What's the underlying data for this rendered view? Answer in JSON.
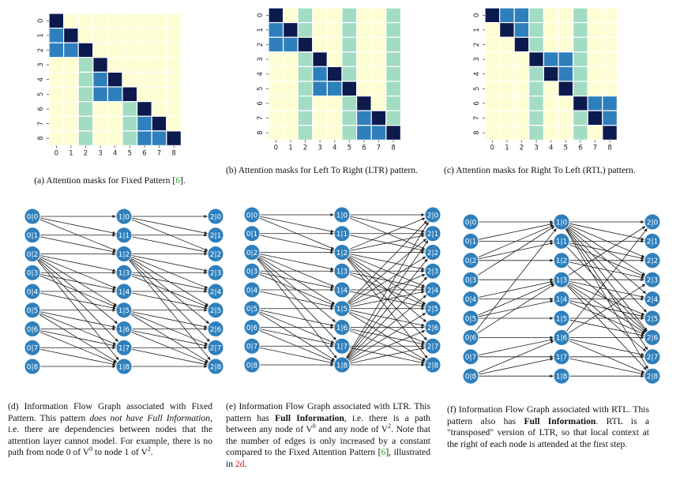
{
  "colors": {
    "masked": "#fefed4",
    "attend_light": "#a2dcc3",
    "attend_mid": "#2e7fbc",
    "self": "#0d1a4e",
    "node_fill": "#2e7fbc",
    "node_stroke": "#ffffff",
    "edge": "#1a1a1a",
    "cite_green": "#2a9d2a",
    "ref_red": "#d11111"
  },
  "matrices": {
    "labels": [
      "0",
      "1",
      "2",
      "3",
      "4",
      "5",
      "6",
      "7",
      "8"
    ],
    "fixed": [
      [
        3,
        0,
        0,
        0,
        0,
        0,
        0,
        0,
        0
      ],
      [
        2,
        3,
        0,
        0,
        0,
        0,
        0,
        0,
        0
      ],
      [
        2,
        2,
        3,
        0,
        0,
        0,
        0,
        0,
        0
      ],
      [
        0,
        0,
        1,
        3,
        0,
        0,
        0,
        0,
        0
      ],
      [
        0,
        0,
        1,
        2,
        3,
        0,
        0,
        0,
        0
      ],
      [
        0,
        0,
        1,
        2,
        2,
        3,
        0,
        0,
        0
      ],
      [
        0,
        0,
        1,
        0,
        0,
        1,
        3,
        0,
        0
      ],
      [
        0,
        0,
        1,
        0,
        0,
        1,
        2,
        3,
        0
      ],
      [
        0,
        0,
        1,
        0,
        0,
        1,
        2,
        2,
        3
      ]
    ],
    "ltr": [
      [
        3,
        0,
        1,
        0,
        0,
        1,
        0,
        0,
        1
      ],
      [
        2,
        3,
        1,
        0,
        0,
        1,
        0,
        0,
        1
      ],
      [
        2,
        2,
        3,
        0,
        0,
        1,
        0,
        0,
        1
      ],
      [
        0,
        0,
        1,
        3,
        0,
        1,
        0,
        0,
        1
      ],
      [
        0,
        0,
        1,
        2,
        3,
        1,
        0,
        0,
        1
      ],
      [
        0,
        0,
        1,
        2,
        2,
        3,
        0,
        0,
        1
      ],
      [
        0,
        0,
        1,
        0,
        0,
        1,
        3,
        0,
        1
      ],
      [
        0,
        0,
        1,
        0,
        0,
        1,
        2,
        3,
        1
      ],
      [
        0,
        0,
        1,
        0,
        0,
        1,
        2,
        2,
        3
      ]
    ],
    "rtl": [
      [
        3,
        2,
        2,
        1,
        0,
        0,
        1,
        0,
        0
      ],
      [
        0,
        3,
        2,
        1,
        0,
        0,
        1,
        0,
        0
      ],
      [
        0,
        0,
        3,
        1,
        0,
        0,
        1,
        0,
        0
      ],
      [
        0,
        0,
        0,
        3,
        2,
        2,
        1,
        0,
        0
      ],
      [
        0,
        0,
        0,
        1,
        3,
        2,
        1,
        0,
        0
      ],
      [
        0,
        0,
        0,
        1,
        0,
        3,
        1,
        0,
        0
      ],
      [
        0,
        0,
        0,
        1,
        0,
        0,
        3,
        2,
        2
      ],
      [
        0,
        0,
        0,
        1,
        0,
        0,
        1,
        3,
        2
      ],
      [
        0,
        0,
        0,
        1,
        0,
        0,
        1,
        0,
        3
      ]
    ]
  },
  "graphs": {
    "layer_prefixes": [
      "0|",
      "1|",
      "2|"
    ],
    "fixed": {
      "l1": [
        [
          0,
          0
        ],
        [
          0,
          1
        ],
        [
          0,
          2
        ],
        [
          1,
          1
        ],
        [
          1,
          2
        ],
        [
          2,
          2
        ],
        [
          2,
          3
        ],
        [
          2,
          4
        ],
        [
          2,
          5
        ],
        [
          2,
          6
        ],
        [
          2,
          7
        ],
        [
          2,
          8
        ],
        [
          3,
          3
        ],
        [
          3,
          4
        ],
        [
          3,
          5
        ],
        [
          4,
          4
        ],
        [
          4,
          5
        ],
        [
          5,
          5
        ],
        [
          5,
          6
        ],
        [
          5,
          7
        ],
        [
          5,
          8
        ],
        [
          6,
          6
        ],
        [
          6,
          7
        ],
        [
          6,
          8
        ],
        [
          7,
          7
        ],
        [
          7,
          8
        ],
        [
          8,
          8
        ]
      ],
      "l2": [
        [
          0,
          0
        ],
        [
          0,
          1
        ],
        [
          0,
          2
        ],
        [
          1,
          1
        ],
        [
          1,
          2
        ],
        [
          2,
          2
        ],
        [
          2,
          3
        ],
        [
          2,
          4
        ],
        [
          2,
          5
        ],
        [
          2,
          6
        ],
        [
          2,
          7
        ],
        [
          2,
          8
        ],
        [
          3,
          3
        ],
        [
          3,
          4
        ],
        [
          3,
          5
        ],
        [
          4,
          4
        ],
        [
          4,
          5
        ],
        [
          5,
          5
        ],
        [
          5,
          6
        ],
        [
          5,
          7
        ],
        [
          5,
          8
        ],
        [
          6,
          6
        ],
        [
          6,
          7
        ],
        [
          6,
          8
        ],
        [
          7,
          7
        ],
        [
          7,
          8
        ],
        [
          8,
          8
        ]
      ]
    },
    "ltr": {
      "l1": [
        [
          0,
          0
        ],
        [
          0,
          1
        ],
        [
          0,
          2
        ],
        [
          1,
          1
        ],
        [
          1,
          2
        ],
        [
          2,
          2
        ],
        [
          2,
          3
        ],
        [
          2,
          4
        ],
        [
          2,
          5
        ],
        [
          2,
          6
        ],
        [
          2,
          7
        ],
        [
          2,
          8
        ],
        [
          3,
          3
        ],
        [
          3,
          4
        ],
        [
          3,
          5
        ],
        [
          4,
          4
        ],
        [
          4,
          5
        ],
        [
          5,
          5
        ],
        [
          5,
          6
        ],
        [
          5,
          7
        ],
        [
          5,
          8
        ],
        [
          6,
          6
        ],
        [
          6,
          7
        ],
        [
          6,
          8
        ],
        [
          7,
          7
        ],
        [
          7,
          8
        ],
        [
          8,
          8
        ]
      ],
      "l2": [
        [
          0,
          0
        ],
        [
          0,
          1
        ],
        [
          0,
          2
        ],
        [
          1,
          1
        ],
        [
          1,
          2
        ],
        [
          2,
          0
        ],
        [
          2,
          1
        ],
        [
          2,
          2
        ],
        [
          2,
          3
        ],
        [
          2,
          4
        ],
        [
          2,
          5
        ],
        [
          2,
          6
        ],
        [
          2,
          7
        ],
        [
          2,
          8
        ],
        [
          3,
          3
        ],
        [
          3,
          4
        ],
        [
          3,
          5
        ],
        [
          4,
          4
        ],
        [
          4,
          5
        ],
        [
          5,
          0
        ],
        [
          5,
          1
        ],
        [
          5,
          2
        ],
        [
          5,
          3
        ],
        [
          5,
          4
        ],
        [
          5,
          5
        ],
        [
          5,
          6
        ],
        [
          5,
          7
        ],
        [
          5,
          8
        ],
        [
          6,
          6
        ],
        [
          6,
          7
        ],
        [
          6,
          8
        ],
        [
          7,
          7
        ],
        [
          7,
          8
        ],
        [
          8,
          0
        ],
        [
          8,
          1
        ],
        [
          8,
          2
        ],
        [
          8,
          3
        ],
        [
          8,
          4
        ],
        [
          8,
          5
        ],
        [
          8,
          6
        ],
        [
          8,
          7
        ],
        [
          8,
          8
        ]
      ]
    },
    "rtl": {
      "l1": [
        [
          0,
          0
        ],
        [
          1,
          0
        ],
        [
          2,
          0
        ],
        [
          1,
          1
        ],
        [
          2,
          1
        ],
        [
          2,
          2
        ],
        [
          3,
          3
        ],
        [
          4,
          3
        ],
        [
          5,
          3
        ],
        [
          4,
          4
        ],
        [
          5,
          4
        ],
        [
          5,
          5
        ],
        [
          6,
          6
        ],
        [
          7,
          6
        ],
        [
          8,
          6
        ],
        [
          7,
          7
        ],
        [
          8,
          7
        ],
        [
          8,
          8
        ],
        [
          3,
          0
        ],
        [
          6,
          0
        ],
        [
          6,
          3
        ]
      ],
      "l2": [
        [
          0,
          0
        ],
        [
          0,
          1
        ],
        [
          0,
          2
        ],
        [
          0,
          3
        ],
        [
          0,
          4
        ],
        [
          0,
          5
        ],
        [
          0,
          6
        ],
        [
          0,
          7
        ],
        [
          0,
          8
        ],
        [
          1,
          1
        ],
        [
          1,
          2
        ],
        [
          1,
          3
        ],
        [
          1,
          6
        ],
        [
          2,
          2
        ],
        [
          2,
          3
        ],
        [
          2,
          6
        ],
        [
          3,
          0
        ],
        [
          3,
          3
        ],
        [
          3,
          4
        ],
        [
          3,
          5
        ],
        [
          3,
          6
        ],
        [
          3,
          7
        ],
        [
          3,
          8
        ],
        [
          4,
          4
        ],
        [
          4,
          5
        ],
        [
          4,
          6
        ],
        [
          5,
          5
        ],
        [
          5,
          6
        ],
        [
          6,
          0
        ],
        [
          6,
          3
        ],
        [
          6,
          6
        ],
        [
          6,
          7
        ],
        [
          6,
          8
        ],
        [
          7,
          7
        ],
        [
          7,
          8
        ],
        [
          8,
          8
        ]
      ]
    }
  },
  "captions": {
    "a_pre": "(a) Attention masks for Fixed Pattern [",
    "a_cite": "6",
    "a_post": "].",
    "b": "(b) Attention masks for Left To Right (LTR) pattern.",
    "c": "(c) Attention masks for Right To Left (RTL) pattern.",
    "d_1": "(d) Information Flow Graph associated with Fixed Pattern. This pattern ",
    "d_2": "does not have Full Information",
    "d_3": ", i.e. there are dependencies between nodes that the attention layer cannot model. For example, there is no path from node 0 of V",
    "d_4": "0",
    "d_5": " to node 1 of V",
    "d_6": "2",
    "d_7": ".",
    "e_1": "(e) Information Flow Graph associated with LTR. This pattern has ",
    "e_2": "Full Information",
    "e_3": ", i.e. there is a path between any node of V",
    "e_4": "0",
    "e_5": " and any node of V",
    "e_6": "2",
    "e_7": ". Note that the number of edges is only increased by a constant compared to the Fixed Attention Pattern [",
    "e_8": "6",
    "e_9": "], illustrated in ",
    "e_10": "2d",
    "e_11": ".",
    "f_1": "(f) Information Flow Graph associated with RTL. This pattern also has ",
    "f_2": "Full Information",
    "f_3": ". RTL is a \"transposed\" version of LTR, so that local context at the right of each node is attended at the first step."
  }
}
